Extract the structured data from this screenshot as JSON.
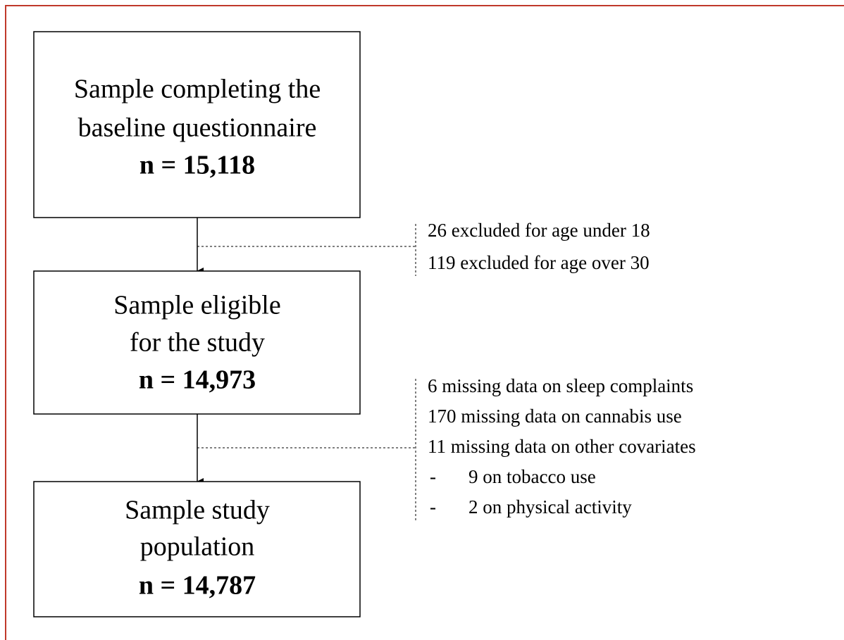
{
  "boxes": [
    {
      "lines": [
        "Sample completing the",
        "baseline questionnaire"
      ],
      "n": "n = 15,118"
    },
    {
      "lines": [
        "Sample eligible",
        "for the study"
      ],
      "n": "n = 14,973"
    },
    {
      "lines": [
        "Sample study",
        "population"
      ],
      "n": "n = 14,787"
    }
  ],
  "exclusions": [
    {
      "lines": [
        "26 excluded for age under 18",
        "119 excluded for age over 30"
      ],
      "subitems": []
    },
    {
      "lines": [
        "6 missing data on sleep complaints",
        "170 missing data on cannabis use",
        "11 missing data on other covariates"
      ],
      "subitems": [
        {
          "bullet": "-",
          "text": "9 on tobacco use"
        },
        {
          "bullet": "-",
          "text": "2 on physical activity"
        }
      ]
    }
  ]
}
